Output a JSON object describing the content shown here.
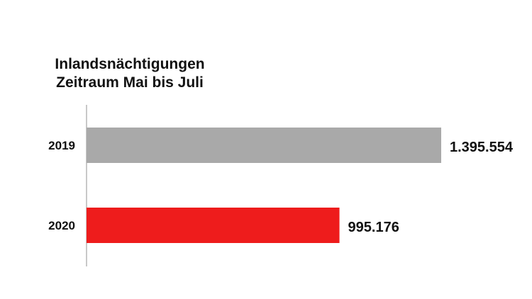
{
  "chart_data": {
    "type": "bar",
    "orientation": "horizontal",
    "title": "Inlandsnächtigungen",
    "subtitle": "Zeitraum Mai bis Juli",
    "categories": [
      "2019",
      "2020"
    ],
    "values": [
      1395554,
      995176
    ],
    "value_labels": [
      "1.395.554",
      "995.176"
    ],
    "colors": [
      "#a9a9a9",
      "#ee1c1c"
    ],
    "axis_color": "#c8c8c8",
    "xlabel": "",
    "ylabel": "",
    "grid": false,
    "legend": "none"
  }
}
